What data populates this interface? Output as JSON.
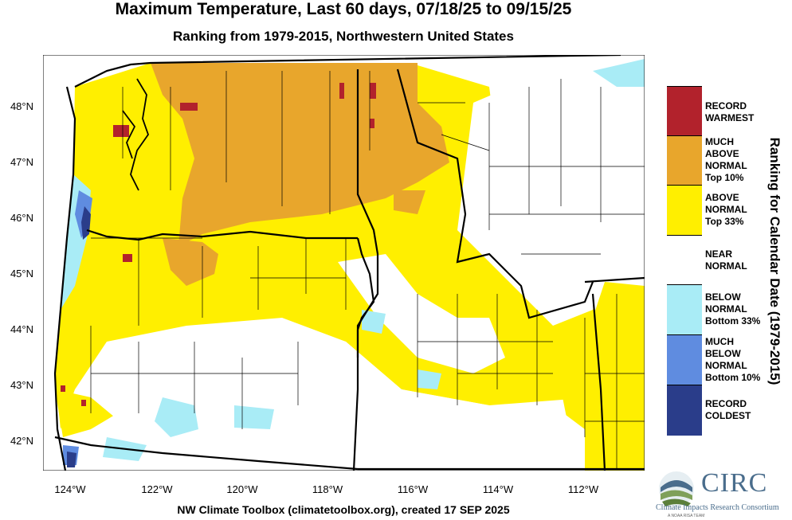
{
  "header": {
    "title": "Maximum Temperature, Last 60 days, 07/18/25 to 09/15/25",
    "subtitle": "Ranking from 1979-2015, Northwestern United States"
  },
  "axes": {
    "lat_labels": [
      "48°N",
      "47°N",
      "46°N",
      "45°N",
      "44°N",
      "43°N",
      "42°N"
    ],
    "lon_labels": [
      "124°W",
      "122°W",
      "120°W",
      "118°W",
      "116°W",
      "114°W",
      "112°W"
    ]
  },
  "legend": {
    "title": "Ranking for Calendar Date (1979-2015)",
    "items": [
      {
        "lines": [
          "RECORD",
          "WARMEST"
        ],
        "color": "#b2222c"
      },
      {
        "lines": [
          "MUCH",
          "ABOVE",
          "NORMAL",
          "Top 10%"
        ],
        "color": "#e8a62c"
      },
      {
        "lines": [
          "ABOVE",
          "NORMAL",
          "Top 33%"
        ],
        "color": "#ffef00"
      },
      {
        "lines": [
          "NEAR",
          "NORMAL"
        ],
        "color": "#ffffff"
      },
      {
        "lines": [
          "BELOW",
          "NORMAL",
          "Bottom 33%"
        ],
        "color": "#a9ecf6"
      },
      {
        "lines": [
          "MUCH",
          "BELOW",
          "NORMAL",
          "Bottom 10%"
        ],
        "color": "#5f8ce0"
      },
      {
        "lines": [
          "RECORD",
          "COLDEST"
        ],
        "color": "#2a3d8a"
      }
    ]
  },
  "credit": "NW Climate Toolbox (climatetoolbox.org), created 17 SEP 2025",
  "logo": {
    "name": "CIRC",
    "subtitle": "Climate Impacts Research Consortium",
    "tagline": "A NOAA RISA TEAM",
    "icon": "circ-logo-icon"
  }
}
